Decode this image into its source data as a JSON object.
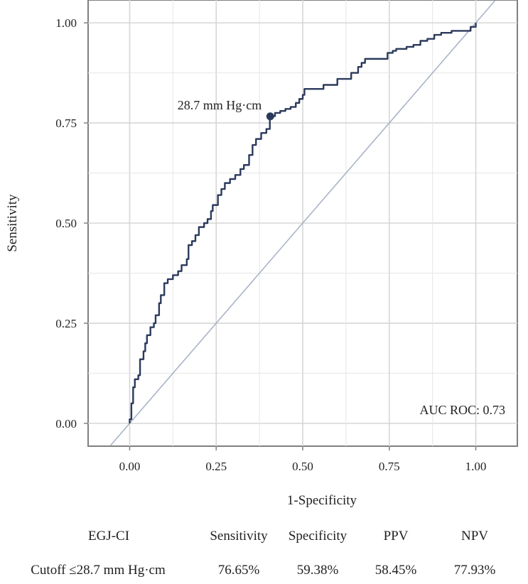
{
  "chart_data": {
    "type": "line",
    "title": "",
    "xlabel": "1-Specificity",
    "ylabel": "Sensitivity",
    "xlim": [
      -0.12,
      1.12
    ],
    "ylim": [
      -0.057,
      1.057
    ],
    "grid": true,
    "x_ticks": [
      "0.00",
      "0.25",
      "0.50",
      "0.75",
      "1.00"
    ],
    "y_ticks": [
      "0.00",
      "0.25",
      "0.50",
      "0.75",
      "1.00"
    ],
    "series": [
      {
        "name": "ROC curve",
        "color": "#2b3a5c",
        "points": [
          [
            0.0,
            0.0
          ],
          [
            0.0,
            0.01
          ],
          [
            0.005,
            0.05
          ],
          [
            0.01,
            0.09
          ],
          [
            0.015,
            0.11
          ],
          [
            0.025,
            0.12
          ],
          [
            0.03,
            0.16
          ],
          [
            0.04,
            0.18
          ],
          [
            0.045,
            0.2
          ],
          [
            0.05,
            0.22
          ],
          [
            0.06,
            0.24
          ],
          [
            0.07,
            0.25
          ],
          [
            0.075,
            0.27
          ],
          [
            0.085,
            0.3
          ],
          [
            0.09,
            0.32
          ],
          [
            0.1,
            0.35
          ],
          [
            0.11,
            0.36
          ],
          [
            0.125,
            0.37
          ],
          [
            0.14,
            0.38
          ],
          [
            0.15,
            0.395
          ],
          [
            0.165,
            0.41
          ],
          [
            0.17,
            0.445
          ],
          [
            0.18,
            0.455
          ],
          [
            0.19,
            0.47
          ],
          [
            0.2,
            0.49
          ],
          [
            0.215,
            0.5
          ],
          [
            0.225,
            0.51
          ],
          [
            0.235,
            0.53
          ],
          [
            0.24,
            0.545
          ],
          [
            0.255,
            0.57
          ],
          [
            0.265,
            0.585
          ],
          [
            0.275,
            0.6
          ],
          [
            0.29,
            0.61
          ],
          [
            0.305,
            0.62
          ],
          [
            0.32,
            0.635
          ],
          [
            0.33,
            0.645
          ],
          [
            0.345,
            0.67
          ],
          [
            0.355,
            0.695
          ],
          [
            0.365,
            0.71
          ],
          [
            0.38,
            0.725
          ],
          [
            0.395,
            0.735
          ],
          [
            0.405,
            0.767
          ],
          [
            0.42,
            0.775
          ],
          [
            0.435,
            0.78
          ],
          [
            0.45,
            0.785
          ],
          [
            0.465,
            0.79
          ],
          [
            0.48,
            0.8
          ],
          [
            0.49,
            0.81
          ],
          [
            0.5,
            0.82
          ],
          [
            0.505,
            0.835
          ],
          [
            0.55,
            0.835
          ],
          [
            0.56,
            0.845
          ],
          [
            0.59,
            0.845
          ],
          [
            0.6,
            0.86
          ],
          [
            0.63,
            0.86
          ],
          [
            0.64,
            0.875
          ],
          [
            0.66,
            0.89
          ],
          [
            0.67,
            0.9
          ],
          [
            0.68,
            0.91
          ],
          [
            0.74,
            0.91
          ],
          [
            0.745,
            0.925
          ],
          [
            0.76,
            0.93
          ],
          [
            0.77,
            0.935
          ],
          [
            0.8,
            0.94
          ],
          [
            0.82,
            0.945
          ],
          [
            0.84,
            0.955
          ],
          [
            0.86,
            0.96
          ],
          [
            0.88,
            0.97
          ],
          [
            0.9,
            0.975
          ],
          [
            0.93,
            0.98
          ],
          [
            0.97,
            0.98
          ],
          [
            0.985,
            0.99
          ],
          [
            1.0,
            1.0
          ]
        ]
      },
      {
        "name": "Reference line",
        "color": "#a9b3c9",
        "points": [
          [
            -0.055,
            -0.055
          ],
          [
            1.055,
            1.055
          ]
        ]
      }
    ],
    "cutoff_point": {
      "x": 0.4062,
      "y": 0.7665,
      "label": "28.7 mm Hg·cm"
    },
    "annotation": "AUC ROC: 0.73"
  },
  "metrics_table": {
    "headers": [
      "EGJ-CI",
      "Sensitivity",
      "Specificity",
      "PPV",
      "NPV"
    ],
    "row": [
      "Cutoff ≤28.7 mm Hg·cm",
      "76.65%",
      "59.38%",
      "58.45%",
      "77.93%"
    ]
  }
}
